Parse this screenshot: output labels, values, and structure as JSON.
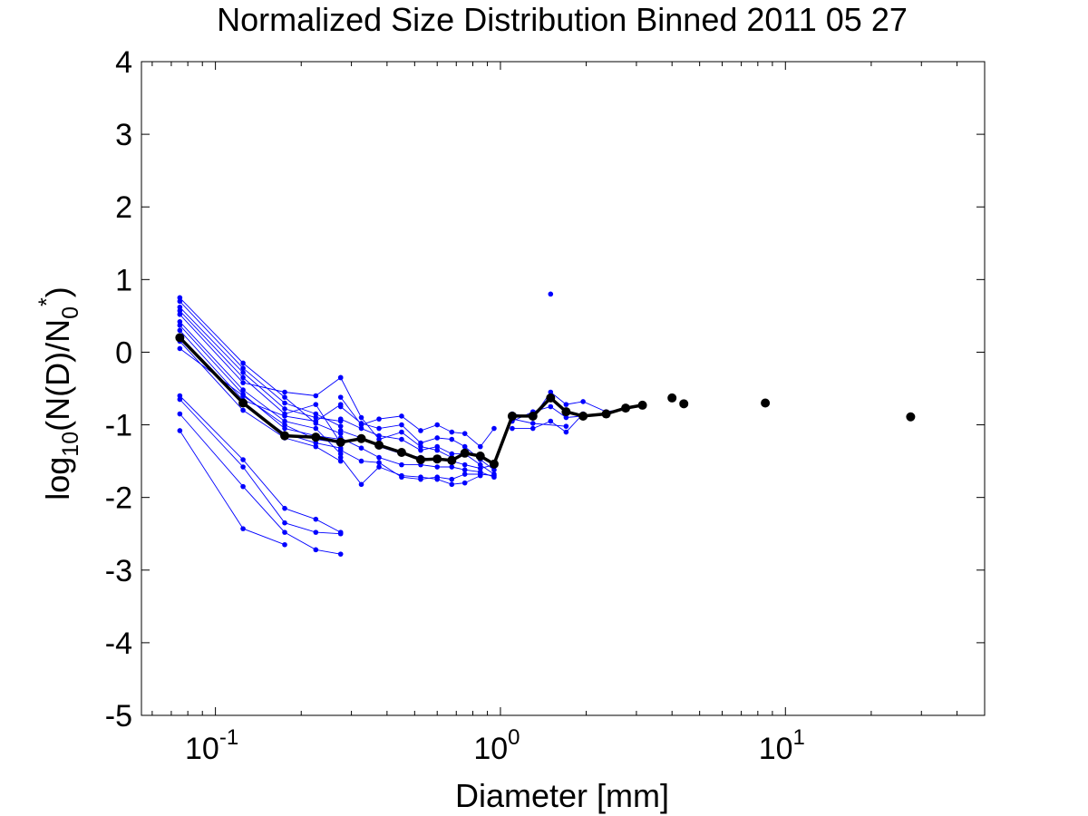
{
  "chart_data": {
    "type": "scatter",
    "title": "Normalized Size Distribution Binned 2011 05 27",
    "xlabel": "Diameter [mm]",
    "ylabel": {
      "base": "log",
      "sub1": "10",
      "body": "(N(D)/N",
      "sub2": "0",
      "sup": "*",
      "close": ")"
    },
    "x_scale": "log",
    "xlim": [
      0.055,
      50
    ],
    "ylim": [
      -5,
      4
    ],
    "x_ticks": [
      {
        "value": 0.1,
        "base": "10",
        "exp": "-1"
      },
      {
        "value": 1,
        "base": "10",
        "exp": "0"
      },
      {
        "value": 10,
        "base": "10",
        "exp": "1"
      }
    ],
    "y_ticks": [
      4,
      3,
      2,
      1,
      0,
      -1,
      -2,
      -3,
      -4,
      -5
    ],
    "grid": false,
    "colors": {
      "individual": "#0000ff",
      "mean": "#000000",
      "axes": "#000000"
    },
    "individual_series": [
      {
        "x": [
          0.075,
          0.125,
          0.175,
          0.225,
          0.275
        ],
        "y": [
          0.75,
          -0.15,
          -0.62,
          -0.98,
          -1.12
        ]
      },
      {
        "x": [
          0.075,
          0.125,
          0.175,
          0.225,
          0.275
        ],
        "y": [
          0.7,
          -0.22,
          -0.7,
          -0.85,
          -1.02
        ]
      },
      {
        "x": [
          0.075,
          0.125,
          0.175,
          0.225,
          0.275
        ],
        "y": [
          0.62,
          -0.28,
          -0.78,
          -0.9,
          -0.95
        ]
      },
      {
        "x": [
          0.075,
          0.125,
          0.175,
          0.225,
          0.275
        ],
        "y": [
          0.57,
          -0.35,
          -0.85,
          -0.72,
          -1.25
        ]
      },
      {
        "x": [
          0.075,
          0.125,
          0.175,
          0.225,
          0.275
        ],
        "y": [
          0.52,
          -0.42,
          -0.55,
          -0.6,
          -0.35
        ]
      },
      {
        "x": [
          0.075,
          0.125,
          0.175,
          0.225,
          0.275
        ],
        "y": [
          0.42,
          -0.52,
          -0.95,
          -1.05,
          -1.4
        ]
      },
      {
        "x": [
          0.075,
          0.125,
          0.175,
          0.225,
          0.275
        ],
        "y": [
          0.37,
          -0.58,
          -1.05,
          -1.15,
          -1.2
        ]
      },
      {
        "x": [
          0.075,
          0.125,
          0.175,
          0.225,
          0.275
        ],
        "y": [
          0.3,
          -0.66,
          -0.88,
          -0.95,
          -0.72
        ]
      },
      {
        "x": [
          0.075,
          0.125,
          0.175,
          0.225,
          0.275
        ],
        "y": [
          0.22,
          -0.72,
          -1.12,
          -1.25,
          -1.32
        ]
      },
      {
        "x": [
          0.075,
          0.125,
          0.175,
          0.225,
          0.275
        ],
        "y": [
          0.15,
          -0.8,
          -1.18,
          -1.3,
          -1.5
        ]
      },
      {
        "x": [
          0.075,
          0.125,
          0.175,
          0.225,
          0.275
        ],
        "y": [
          0.05,
          -0.6,
          -1.0,
          -1.2,
          -1.25
        ]
      },
      {
        "x": [
          0.075,
          0.125,
          0.175,
          0.225,
          0.275
        ],
        "y": [
          -0.6,
          -1.48,
          -2.15,
          -2.3,
          -2.48
        ]
      },
      {
        "x": [
          0.075,
          0.125,
          0.175,
          0.225,
          0.275
        ],
        "y": [
          -0.65,
          -1.58,
          -2.35,
          -2.48,
          -2.5
        ]
      },
      {
        "x": [
          0.075,
          0.125,
          0.175,
          0.225,
          0.275
        ],
        "y": [
          -0.85,
          -1.85,
          -2.48,
          -2.72,
          -2.78
        ]
      },
      {
        "x": [
          0.075,
          0.125,
          0.175
        ],
        "y": [
          -1.08,
          -2.43,
          -2.65
        ]
      },
      {
        "x": [
          0.275,
          0.325,
          0.375,
          0.45,
          0.525,
          0.6,
          0.675,
          0.75,
          0.85,
          0.95
        ],
        "y": [
          -0.62,
          -1.0,
          -0.92,
          -0.88,
          -1.08,
          -1.0,
          -1.1,
          -1.12,
          -1.3,
          -1.05
        ]
      },
      {
        "x": [
          0.275,
          0.325,
          0.375,
          0.45,
          0.525,
          0.6,
          0.675,
          0.75,
          0.85,
          0.95
        ],
        "y": [
          -0.75,
          -0.98,
          -1.05,
          -1.0,
          -1.25,
          -1.18,
          -1.2,
          -1.3,
          -1.48,
          -1.62
        ]
      },
      {
        "x": [
          0.275,
          0.325,
          0.375,
          0.45,
          0.525,
          0.6,
          0.675,
          0.75,
          0.85,
          0.95
        ],
        "y": [
          -0.92,
          -1.05,
          -1.15,
          -1.2,
          -1.35,
          -1.3,
          -1.4,
          -1.4,
          -1.55,
          -1.68
        ]
      },
      {
        "x": [
          0.275,
          0.325,
          0.375,
          0.45,
          0.525,
          0.6,
          0.675,
          0.75,
          0.85,
          0.95
        ],
        "y": [
          -1.08,
          -1.18,
          -1.3,
          -1.4,
          -1.45,
          -1.48,
          -1.5,
          -1.55,
          -1.6,
          -1.55
        ]
      },
      {
        "x": [
          0.275,
          0.325,
          0.375,
          0.45,
          0.525,
          0.6,
          0.675,
          0.75,
          0.85,
          0.95
        ],
        "y": [
          -1.18,
          -1.32,
          -1.45,
          -1.55,
          -1.55,
          -1.58,
          -1.58,
          -1.62,
          -1.65,
          -1.72
        ]
      },
      {
        "x": [
          0.275,
          0.325,
          0.375,
          0.45,
          0.525,
          0.6,
          0.675,
          0.75,
          0.85,
          0.95
        ],
        "y": [
          -1.35,
          -1.5,
          -1.52,
          -1.72,
          -1.75,
          -1.72,
          -1.75,
          -1.68,
          -1.68,
          -1.7
        ]
      },
      {
        "x": [
          0.275,
          0.325,
          0.375,
          0.45,
          0.525,
          0.6,
          0.675,
          0.75,
          0.85
        ],
        "y": [
          -1.45,
          -1.82,
          -1.58,
          -1.7,
          -1.72,
          -1.75,
          -1.82,
          -1.8,
          -1.7
        ]
      },
      {
        "x": [
          0.275,
          0.325,
          0.375,
          0.45,
          0.525,
          0.6,
          0.675
        ],
        "y": [
          -0.35,
          -0.9,
          -1.2,
          -1.1,
          -1.3,
          -1.35,
          -1.45
        ]
      },
      {
        "x": [
          1.1,
          1.3,
          1.5,
          1.7,
          1.95,
          2.35,
          2.75,
          3.15
        ],
        "y": [
          -0.85,
          -0.9,
          -0.55,
          -0.72,
          -0.68,
          -0.82,
          -0.78,
          -0.72
        ]
      },
      {
        "x": [
          1.1,
          1.3,
          1.5,
          1.7,
          1.95,
          2.35
        ],
        "y": [
          -0.95,
          -0.82,
          -0.75,
          -0.9,
          -0.88,
          -0.85
        ]
      },
      {
        "x": [
          1.1,
          1.3,
          1.5,
          1.7,
          1.95
        ],
        "y": [
          -1.05,
          -1.05,
          -0.95,
          -1.1,
          -0.85
        ]
      },
      {
        "x": [
          1.1,
          1.3,
          1.7
        ],
        "y": [
          -0.92,
          -0.98,
          -1.02
        ]
      }
    ],
    "isolated_points": {
      "x": [
        1.5
      ],
      "y": [
        0.8
      ]
    },
    "mean_series": {
      "name": "",
      "x": [
        0.075,
        0.125,
        0.175,
        0.225,
        0.275,
        0.325,
        0.375,
        0.45,
        0.525,
        0.6,
        0.675,
        0.75,
        0.85,
        0.95,
        1.1,
        1.3,
        1.5,
        1.7,
        1.95,
        2.35,
        2.75,
        3.15
      ],
      "y": [
        0.2,
        -0.7,
        -1.15,
        -1.17,
        -1.24,
        -1.19,
        -1.28,
        -1.38,
        -1.48,
        -1.47,
        -1.49,
        -1.39,
        -1.43,
        -1.54,
        -0.88,
        -0.88,
        -0.63,
        -0.82,
        -0.88,
        -0.85,
        -0.77,
        -0.73
      ]
    },
    "mean_isolated": {
      "x": [
        4.0,
        4.4,
        8.5,
        27.5
      ],
      "y": [
        -0.63,
        -0.71,
        -0.7,
        -0.89
      ]
    }
  }
}
